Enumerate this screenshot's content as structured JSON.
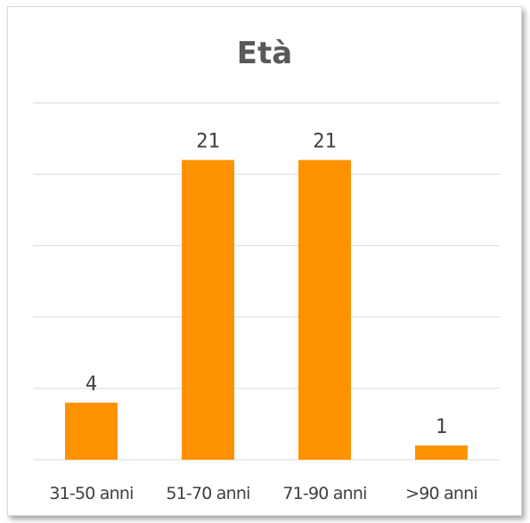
{
  "chart_data": {
    "type": "bar",
    "title": "Età",
    "categories": [
      "31-50 anni",
      "51-70 anni",
      "71-90 anni",
      ">90 anni"
    ],
    "values": [
      4,
      21,
      21,
      1
    ],
    "ylim": [
      0,
      25
    ],
    "grid": true,
    "bar_color": "#FF9200",
    "data_labels": [
      "4",
      "21",
      "21",
      "1"
    ]
  }
}
